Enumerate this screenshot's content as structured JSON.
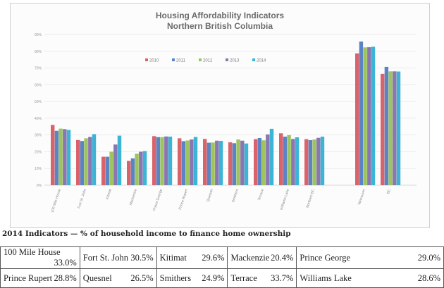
{
  "chart_data": {
    "type": "bar",
    "title": "Housing Affordability Indicators",
    "subtitle": "Northern British Columbia",
    "categories": [
      "100 Mile House",
      "Fort St. John",
      "Kitimat",
      "Mackenzie",
      "Prince George",
      "Prince Rupert",
      "Quesnel",
      "Smithers",
      "Terrace",
      "Williams Lake",
      "Northern BC",
      "",
      "Vancouver",
      "BC"
    ],
    "series": [
      {
        "name": "2010",
        "color": "#d9636b",
        "values": [
          36,
          27,
          17,
          14.5,
          29.3,
          28,
          27.6,
          25.6,
          27.5,
          31,
          27.5,
          null,
          78.7,
          66.5
        ]
      },
      {
        "name": "2011",
        "color": "#5b84c4",
        "values": [
          32.5,
          26.4,
          17,
          16,
          28.7,
          26.3,
          25.4,
          25.1,
          28.2,
          29,
          26.9,
          null,
          85.8,
          70.7
        ]
      },
      {
        "name": "2012",
        "color": "#9dc45f",
        "values": [
          33.8,
          28,
          20,
          18.8,
          28.7,
          26.7,
          25.5,
          27.3,
          26.8,
          29.9,
          27.3,
          null,
          82.3,
          68
        ]
      },
      {
        "name": "2013",
        "color": "#8a76b0",
        "values": [
          33.5,
          28.8,
          24.3,
          20,
          29.1,
          27.3,
          26.6,
          26.6,
          30.3,
          27.6,
          28.3,
          null,
          82.4,
          68
        ]
      },
      {
        "name": "2014",
        "color": "#3cb4d6",
        "values": [
          33.0,
          30.5,
          29.6,
          20.4,
          29.0,
          28.8,
          26.5,
          24.9,
          33.7,
          28.6,
          29,
          null,
          82.7,
          67.9
        ]
      }
    ],
    "ylim": [
      0,
      90
    ],
    "yticks": [
      "0%",
      "10%",
      "20%",
      "30%",
      "40%",
      "50%",
      "60%",
      "70%",
      "80%",
      "90%"
    ],
    "grid": true,
    "legend": "top-center"
  },
  "table": {
    "title": "2014 Indicators — % of household income to finance home ownership",
    "rows": [
      [
        [
          "100 Mile House",
          "33.0%"
        ],
        [
          "Fort St. John",
          "30.5%"
        ],
        [
          "Kitimat",
          "29.6%"
        ],
        [
          "Mackenzie",
          "20.4%"
        ],
        [
          "Prince George",
          "29.0%"
        ]
      ],
      [
        [
          "Prince Rupert",
          "28.8%"
        ],
        [
          "Quesnel",
          "26.5%"
        ],
        [
          "Smithers",
          "24.9%"
        ],
        [
          "Terrace",
          "33.7%"
        ],
        [
          "Williams Lake",
          "28.6%"
        ]
      ]
    ]
  }
}
